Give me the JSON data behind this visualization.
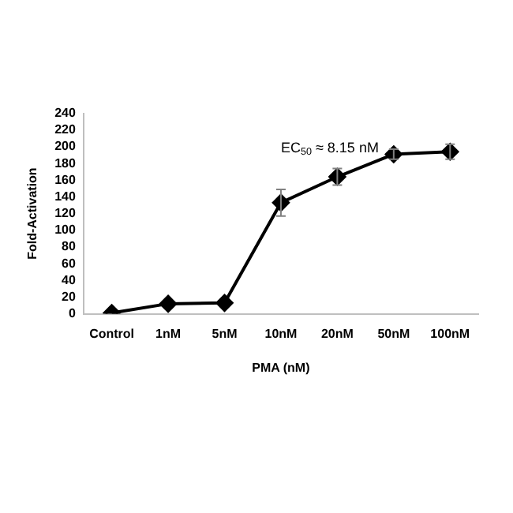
{
  "chart_data": {
    "type": "line",
    "xlabel": "PMA (nM)",
    "ylabel": "Fold-Activation",
    "categories": [
      "Control",
      "1nM",
      "5nM",
      "10nM",
      "20nM",
      "50nM",
      "100nM"
    ],
    "series": [
      {
        "color": "#000000",
        "values": [
          1,
          12,
          13,
          133,
          164,
          191,
          194
        ],
        "errors": [
          null,
          null,
          null,
          16,
          10,
          6,
          9
        ]
      }
    ],
    "ylim": [
      0,
      240
    ],
    "yticks": [
      0,
      20,
      40,
      60,
      80,
      100,
      120,
      140,
      160,
      180,
      200,
      220,
      240
    ],
    "grid": false,
    "legend": false,
    "marker": "diamond",
    "line_style": "solid",
    "annotations": [
      "EC$_{50}$ ≈ 8.15 nM"
    ]
  }
}
